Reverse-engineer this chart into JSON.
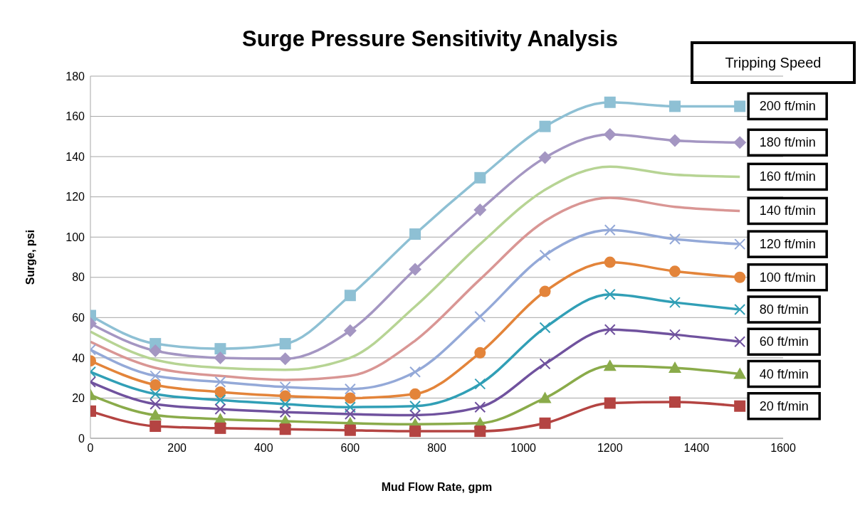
{
  "chart_data": {
    "type": "line",
    "title": "Surge Pressure Sensitivity Analysis",
    "xlabel": "Mud Flow Rate, gpm",
    "ylabel": "Surge, psi",
    "legend_title": "Tripping Speed",
    "legend": "right",
    "grid": "y",
    "x": [
      0,
      150,
      300,
      450,
      600,
      750,
      900,
      1050,
      1200,
      1350,
      1500
    ],
    "xlim": [
      0,
      1600
    ],
    "xticks": [
      0,
      200,
      400,
      600,
      800,
      1000,
      1200,
      1400,
      1600
    ],
    "ylim": [
      0,
      180
    ],
    "yticks": [
      0,
      20,
      40,
      60,
      80,
      100,
      120,
      140,
      160,
      180
    ],
    "series": [
      {
        "name": "200 ft/min",
        "color": "#8ec0d4",
        "marker": "square",
        "values": [
          61,
          47,
          44.5,
          47,
          71,
          101.5,
          129.5,
          155,
          167,
          165,
          165
        ]
      },
      {
        "name": "180 ft/min",
        "color": "#a496c2",
        "marker": "diamond",
        "values": [
          57,
          43.5,
          40,
          39.5,
          53.5,
          84,
          113.5,
          139.5,
          151,
          148,
          147
        ]
      },
      {
        "name": "160 ft/min",
        "color": "#b7d494",
        "marker": "none",
        "values": [
          53,
          39,
          35,
          34,
          40,
          65.5,
          96.5,
          123.5,
          135,
          131,
          130
        ]
      },
      {
        "name": "140 ft/min",
        "color": "#d99694",
        "marker": "none",
        "values": [
          48,
          35,
          31,
          29,
          31,
          48.5,
          79,
          108,
          119.5,
          115,
          113
        ]
      },
      {
        "name": "120 ft/min",
        "color": "#94a9d8",
        "marker": "cross",
        "values": [
          44,
          31,
          28,
          25.5,
          24.5,
          33,
          60.5,
          91,
          103.5,
          99,
          96.5
        ]
      },
      {
        "name": "100 ft/min",
        "color": "#e3843a",
        "marker": "circle",
        "values": [
          38.5,
          26.5,
          23,
          21,
          20,
          22,
          42.5,
          73,
          87.5,
          83,
          80
        ]
      },
      {
        "name": "80 ft/min",
        "color": "#319fb6",
        "marker": "cross",
        "values": [
          33,
          22,
          19,
          17,
          15.5,
          16,
          27,
          55,
          71.5,
          67.5,
          64
        ]
      },
      {
        "name": "60 ft/min",
        "color": "#70529e",
        "marker": "cross",
        "values": [
          28,
          17,
          14.5,
          13,
          12,
          11.5,
          15.5,
          37,
          54,
          51.5,
          48
        ]
      },
      {
        "name": "40 ft/min",
        "color": "#8aab4a",
        "marker": "triangle",
        "values": [
          21.5,
          11.5,
          9.5,
          8.5,
          7.5,
          7,
          7.5,
          20,
          36,
          35,
          32
        ]
      },
      {
        "name": "20 ft/min",
        "color": "#b44442",
        "marker": "square",
        "values": [
          13.5,
          6,
          5,
          4.5,
          4,
          3.5,
          3.5,
          7.5,
          17.5,
          18,
          16
        ]
      }
    ]
  }
}
